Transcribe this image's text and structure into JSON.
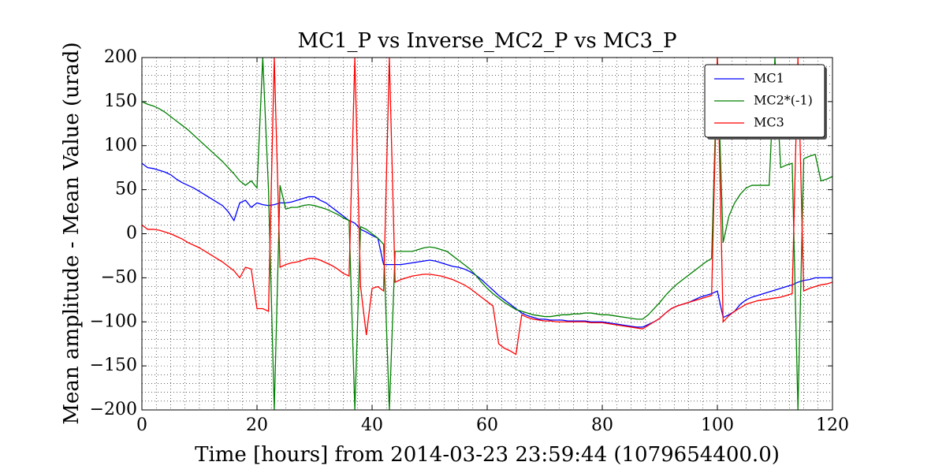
{
  "chart_data": {
    "type": "line",
    "title": "MC1_P vs Inverse_MC2_P vs MC3_P",
    "xlabel": "Time [hours] from 2014-03-23 23:59:44 (1079654400.0)",
    "ylabel": "Mean amplitude - Mean Value (urad)",
    "x": [
      0,
      1,
      2,
      3,
      4,
      5,
      6,
      7,
      8,
      9,
      10,
      11,
      12,
      13,
      14,
      15,
      16,
      17,
      18,
      19,
      20,
      21,
      22,
      23,
      24,
      25,
      26,
      27,
      28,
      29,
      30,
      31,
      32,
      33,
      34,
      35,
      36,
      37,
      38,
      39,
      40,
      41,
      42,
      43,
      44,
      45,
      46,
      47,
      48,
      49,
      50,
      51,
      52,
      53,
      54,
      55,
      56,
      57,
      58,
      59,
      60,
      61,
      62,
      63,
      64,
      65,
      66,
      67,
      68,
      69,
      70,
      71,
      72,
      73,
      74,
      75,
      76,
      77,
      78,
      79,
      80,
      81,
      82,
      83,
      84,
      85,
      86,
      87,
      88,
      89,
      90,
      91,
      92,
      93,
      94,
      95,
      96,
      97,
      98,
      99,
      100,
      101,
      102,
      103,
      104,
      105,
      106,
      107,
      108,
      109,
      110,
      111,
      112,
      113,
      114,
      115,
      116,
      117,
      118,
      119,
      120
    ],
    "series": [
      {
        "name": "MC1",
        "color": "#0000ff",
        "values": [
          80,
          75,
          74,
          72,
          70,
          67,
          62,
          58,
          55,
          52,
          48,
          44,
          40,
          36,
          32,
          25,
          15,
          35,
          38,
          30,
          35,
          33,
          32,
          33,
          35,
          35,
          36,
          38,
          40,
          42,
          42,
          38,
          35,
          30,
          25,
          20,
          15,
          12,
          5,
          2,
          -2,
          -5,
          -35,
          -35,
          -35,
          -35,
          -34,
          -33,
          -32,
          -31,
          -30,
          -31,
          -33,
          -35,
          -37,
          -38,
          -40,
          -43,
          -47,
          -52,
          -58,
          -64,
          -70,
          -75,
          -80,
          -85,
          -90,
          -93,
          -95,
          -97,
          -97,
          -98,
          -98,
          -98,
          -99,
          -99,
          -99,
          -99,
          -100,
          -100,
          -100,
          -101,
          -102,
          -103,
          -104,
          -105,
          -106,
          -106,
          -103,
          -100,
          -96,
          -90,
          -85,
          -82,
          -80,
          -78,
          -75,
          -72,
          -70,
          -68,
          -65,
          -95,
          -92,
          -88,
          -80,
          -75,
          -72,
          -70,
          -68,
          -66,
          -64,
          -62,
          -60,
          -58,
          -55,
          -53,
          -52,
          -50,
          -50,
          -50,
          -50
        ]
      },
      {
        "name": "MC2*(-1)",
        "color": "#008000",
        "values": [
          150,
          147,
          145,
          142,
          138,
          133,
          128,
          123,
          118,
          112,
          106,
          100,
          94,
          88,
          82,
          75,
          68,
          60,
          55,
          60,
          52,
          200,
          50,
          -200,
          55,
          28,
          30,
          30,
          32,
          33,
          32,
          30,
          28,
          25,
          22,
          18,
          15,
          -200,
          8,
          5,
          0,
          -5,
          -12,
          -200,
          -20,
          -20,
          -20,
          -20,
          -18,
          -16,
          -15,
          -16,
          -18,
          -20,
          -25,
          -30,
          -35,
          -40,
          -47,
          -55,
          -62,
          -68,
          -73,
          -78,
          -82,
          -86,
          -88,
          -90,
          -92,
          -93,
          -94,
          -94,
          -93,
          -92,
          -92,
          -91,
          -91,
          -90,
          -90,
          -91,
          -92,
          -92,
          -93,
          -94,
          -95,
          -96,
          -97,
          -97,
          -92,
          -85,
          -78,
          -70,
          -63,
          -57,
          -52,
          -47,
          -42,
          -37,
          -32,
          -28,
          200,
          -10,
          20,
          35,
          45,
          52,
          55,
          55,
          55,
          55,
          200,
          75,
          78,
          80,
          -200,
          85,
          88,
          90,
          60,
          62,
          65
        ]
      },
      {
        "name": "MC3",
        "color": "#ff0000",
        "values": [
          10,
          5,
          5,
          4,
          2,
          0,
          -3,
          -6,
          -10,
          -13,
          -16,
          -20,
          -24,
          -28,
          -32,
          -37,
          -42,
          -50,
          -38,
          -40,
          -85,
          -85,
          -88,
          200,
          -38,
          -35,
          -33,
          -32,
          -30,
          -28,
          -28,
          -30,
          -33,
          -36,
          -40,
          -45,
          -48,
          200,
          -60,
          -115,
          -62,
          -60,
          -65,
          200,
          -55,
          -52,
          -50,
          -48,
          -47,
          -46,
          -46,
          -47,
          -48,
          -50,
          -52,
          -55,
          -58,
          -62,
          -67,
          -72,
          -77,
          -82,
          -125,
          -130,
          -133,
          -137,
          -92,
          -95,
          -97,
          -98,
          -99,
          -99,
          -100,
          -100,
          -100,
          -100,
          -100,
          -100,
          -101,
          -101,
          -101,
          -102,
          -103,
          -104,
          -105,
          -106,
          -107,
          -108,
          -104,
          -100,
          -96,
          -90,
          -85,
          -82,
          -80,
          -78,
          -76,
          -74,
          -72,
          -70,
          200,
          -100,
          -93,
          -88,
          -84,
          -80,
          -78,
          -76,
          -75,
          -74,
          -73,
          -72,
          -70,
          -68,
          200,
          -65,
          -62,
          -60,
          -58,
          -57,
          -55
        ]
      }
    ],
    "xlim": [
      0,
      120
    ],
    "xticks": [
      0,
      20,
      40,
      60,
      80,
      100,
      120
    ],
    "ylim": [
      -200,
      200
    ],
    "yticks": [
      {
        "value": -200,
        "label": "−200"
      },
      {
        "value": -150,
        "label": "−150"
      },
      {
        "value": -100,
        "label": "−100"
      },
      {
        "value": -50,
        "label": "−50"
      },
      0,
      50,
      100,
      150,
      200
    ],
    "grid": true,
    "xminor": 2.5,
    "yminor": 10,
    "legend": "upper right"
  }
}
